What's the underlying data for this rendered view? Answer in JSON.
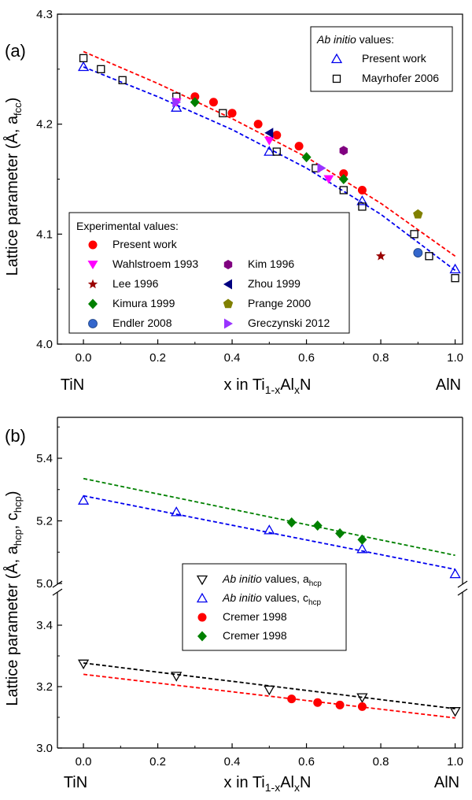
{
  "chart_data": [
    {
      "type": "scatter",
      "panel_label": "(a)",
      "ylabel": "Lattice parameter (Å, a",
      "ylabel_sub": "fcc",
      "ylabel_end": ")",
      "xlabel_parts": {
        "pre": "x in Ti",
        "sub1": "1-x",
        "mid": "Al",
        "sub2": "x",
        "post": "N"
      },
      "x_left_label": "TiN",
      "x_right_label": "AlN",
      "xlim": [
        -0.07,
        1.02
      ],
      "ylim": [
        4.0,
        4.3
      ],
      "x_ticks": [
        0.0,
        0.2,
        0.4,
        0.6,
        0.8,
        1.0
      ],
      "x_tick_labels": [
        "0.0",
        "0.2",
        "0.4",
        "0.6",
        "0.8",
        "1.0"
      ],
      "y_ticks": [
        4.0,
        4.1,
        4.2,
        4.3
      ],
      "y_tick_labels": [
        "4.0",
        "4.1",
        "4.2",
        "4.3"
      ],
      "grid": false,
      "legend_abinitio": {
        "placement": "top-right",
        "title": "Ab initio",
        "title_rest": " values:",
        "entries": [
          {
            "label": "Present work",
            "marker": "triangle-up-open",
            "color": "#0000ee"
          },
          {
            "label": "Mayrhofer 2006",
            "marker": "square-open",
            "color": "#000000"
          }
        ]
      },
      "legend_experimental": {
        "placement": "bottom-left",
        "title": "Experimental values:",
        "entries": [
          {
            "label": "Present work",
            "marker": "circle",
            "color": "#ff0000"
          },
          {
            "label": "Wahlstroem 1993",
            "marker": "triangle-down",
            "color": "#ff00ff"
          },
          {
            "label": "Lee 1996",
            "marker": "star",
            "color": "#990000"
          },
          {
            "label": "Kimura 1999",
            "marker": "diamond",
            "color": "#008000"
          },
          {
            "label": "Endler 2008",
            "marker": "sphere",
            "color": "#3366cc"
          },
          {
            "label": "Kim 1996",
            "marker": "hexagon",
            "color": "#800080"
          },
          {
            "label": "Zhou 1999",
            "marker": "triangle-left",
            "color": "#000080"
          },
          {
            "label": "Prange 2000",
            "marker": "pentagon",
            "color": "#808000"
          },
          {
            "label": "Greczynski 2012",
            "marker": "triangle-right",
            "color": "#9933ff"
          }
        ]
      },
      "fit_lines": [
        {
          "color": "#ff0000",
          "x": [
            0.0,
            0.2,
            0.4,
            0.6,
            0.8,
            1.0
          ],
          "y": [
            4.266,
            4.237,
            4.205,
            4.17,
            4.128,
            4.08
          ]
        },
        {
          "color": "#0000ee",
          "x": [
            0.0,
            0.2,
            0.4,
            0.6,
            0.8,
            1.0
          ],
          "y": [
            4.252,
            4.225,
            4.195,
            4.16,
            4.118,
            4.067
          ]
        }
      ],
      "series": [
        {
          "marker": "triangle-up-open",
          "color": "#0000ee",
          "x": [
            0.0,
            0.25,
            0.5,
            0.75,
            1.0
          ],
          "y": [
            4.252,
            4.215,
            4.175,
            4.13,
            4.068
          ]
        },
        {
          "marker": "square-open",
          "color": "#000000",
          "x": [
            0.0,
            0.047,
            0.105,
            0.25,
            0.375,
            0.52,
            0.625,
            0.7,
            0.75,
            0.89,
            0.93,
            1.0
          ],
          "y": [
            4.26,
            4.25,
            4.24,
            4.225,
            4.21,
            4.175,
            4.16,
            4.14,
            4.125,
            4.1,
            4.08,
            4.06
          ]
        },
        {
          "marker": "circle",
          "color": "#ff0000",
          "x": [
            0.3,
            0.35,
            0.4,
            0.47,
            0.52,
            0.58,
            0.7,
            0.75
          ],
          "y": [
            4.225,
            4.22,
            4.21,
            4.2,
            4.19,
            4.18,
            4.155,
            4.14
          ]
        },
        {
          "marker": "triangle-down",
          "color": "#ff00ff",
          "x": [
            0.25,
            0.5,
            0.66
          ],
          "y": [
            4.22,
            4.185,
            4.15
          ]
        },
        {
          "marker": "star",
          "color": "#990000",
          "x": [
            0.8
          ],
          "y": [
            4.08
          ]
        },
        {
          "marker": "diamond",
          "color": "#008000",
          "x": [
            0.3,
            0.6,
            0.7
          ],
          "y": [
            4.22,
            4.17,
            4.15
          ]
        },
        {
          "marker": "sphere",
          "color": "#3366cc",
          "x": [
            0.9
          ],
          "y": [
            4.083
          ]
        },
        {
          "marker": "hexagon",
          "color": "#800080",
          "x": [
            0.7
          ],
          "y": [
            4.176
          ]
        },
        {
          "marker": "triangle-left",
          "color": "#000080",
          "x": [
            0.5
          ],
          "y": [
            4.192
          ]
        },
        {
          "marker": "pentagon",
          "color": "#808000",
          "x": [
            0.9
          ],
          "y": [
            4.118
          ]
        },
        {
          "marker": "triangle-right",
          "color": "#9933ff",
          "x": [
            0.25,
            0.64
          ],
          "y": [
            4.22,
            4.16
          ]
        }
      ]
    },
    {
      "type": "scatter",
      "panel_label": "(b)",
      "ylabel": "Lattice parameter (Å, a",
      "ylabel_sub": "hcp",
      "ylabel_mid": ", c",
      "ylabel_sub2": "hcp",
      "ylabel_end": ")",
      "xlabel_parts": {
        "pre": "x in Ti",
        "sub1": "1-x",
        "mid": "Al",
        "sub2": "x",
        "post": "N"
      },
      "x_left_label": "TiN",
      "x_right_label": "AlN",
      "xlim": [
        -0.07,
        1.02
      ],
      "axis_break": true,
      "ylim_lower": [
        3.0,
        3.5
      ],
      "ylim_upper": [
        5.0,
        5.55
      ],
      "x_ticks": [
        0.0,
        0.2,
        0.4,
        0.6,
        0.8,
        1.0
      ],
      "x_tick_labels": [
        "0.0",
        "0.2",
        "0.4",
        "0.6",
        "0.8",
        "1.0"
      ],
      "y_ticks": [
        3.0,
        3.2,
        3.4,
        5.0,
        5.2,
        5.4
      ],
      "y_tick_labels": [
        "3.0",
        "3.2",
        "3.4",
        "5.0",
        "5.2",
        "5.4"
      ],
      "grid": false,
      "legend": {
        "placement": "center",
        "entries": [
          {
            "italic": "Ab initio",
            "label": " values, a",
            "sub": "hcp",
            "marker": "triangle-down-open",
            "color": "#000000"
          },
          {
            "italic": "Ab initio",
            "label": " values, c",
            "sub": "hcp",
            "marker": "triangle-up-open",
            "color": "#0000ee"
          },
          {
            "italic": "",
            "label": "Cremer 1998",
            "sub": "",
            "marker": "circle",
            "color": "#ff0000"
          },
          {
            "italic": "",
            "label": "Cremer 1998",
            "sub": "",
            "marker": "diamond",
            "color": "#008000"
          }
        ]
      },
      "fit_lines": [
        {
          "color": "#008000",
          "x": [
            0.0,
            1.0
          ],
          "y": [
            5.335,
            5.09
          ]
        },
        {
          "color": "#0000ee",
          "x": [
            0.0,
            1.0
          ],
          "y": [
            5.28,
            5.045
          ]
        },
        {
          "color": "#000000",
          "x": [
            0.0,
            1.0
          ],
          "y": [
            3.277,
            3.128
          ]
        },
        {
          "color": "#ff0000",
          "x": [
            0.0,
            1.0
          ],
          "y": [
            3.24,
            3.098
          ]
        }
      ],
      "series": [
        {
          "marker": "triangle-up-open",
          "color": "#0000ee",
          "x": [
            0.0,
            0.25,
            0.5,
            0.75,
            1.0
          ],
          "y": [
            5.265,
            5.228,
            5.17,
            5.11,
            5.03
          ]
        },
        {
          "marker": "diamond",
          "color": "#008000",
          "x": [
            0.56,
            0.63,
            0.69,
            0.75
          ],
          "y": [
            5.195,
            5.185,
            5.16,
            5.14
          ]
        },
        {
          "marker": "triangle-down-open",
          "color": "#000000",
          "x": [
            0.0,
            0.25,
            0.5,
            0.75,
            1.0
          ],
          "y": [
            3.275,
            3.235,
            3.19,
            3.165,
            3.12
          ]
        },
        {
          "marker": "circle",
          "color": "#ff0000",
          "x": [
            0.56,
            0.63,
            0.69,
            0.75
          ],
          "y": [
            3.16,
            3.148,
            3.14,
            3.135
          ]
        }
      ]
    }
  ]
}
